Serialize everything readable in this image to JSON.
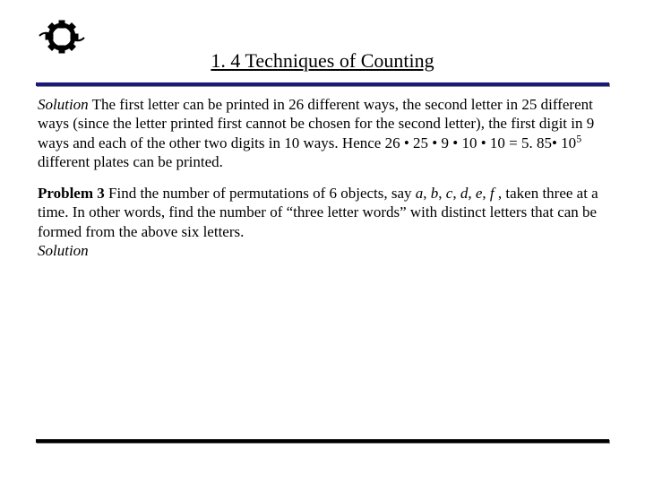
{
  "page": {
    "title": "1. 4 Techniques of Counting",
    "title_fontsize": 22,
    "title_underline": true,
    "logo_color": "#000000",
    "rule_top_color": "#1a1a7a",
    "rule_bottom_color": "#000000",
    "background_color": "#ffffff",
    "text_color": "#000000",
    "body_fontsize": 17,
    "font_family": "Times New Roman"
  },
  "solution": {
    "label": "Solution",
    "body_before_math": "  The first letter can be printed in 26 different ways, the second letter in 25 different ways (since the letter printed first cannot be chosen for the second letter), the first digit in 9 ways and each of the other two digits in 10 ways. Hence 26 • 25 • 9 • 10 • 10 = 5. 85• 10",
    "exponent": "5",
    "body_after_math": "  different plates can be printed."
  },
  "problem": {
    "label": "Problem  3",
    "body_before_vars": "  Find the number of permutations of 6 objects, say ",
    "vars": [
      "a",
      "b",
      "c",
      "d",
      "e",
      "f"
    ],
    "sep": ", ",
    "body_after_vars": " , taken three at a time. In other words, find the number of “three letter words” with distinct letters that can be formed from the above six letters.",
    "solution_label": "Solution"
  }
}
